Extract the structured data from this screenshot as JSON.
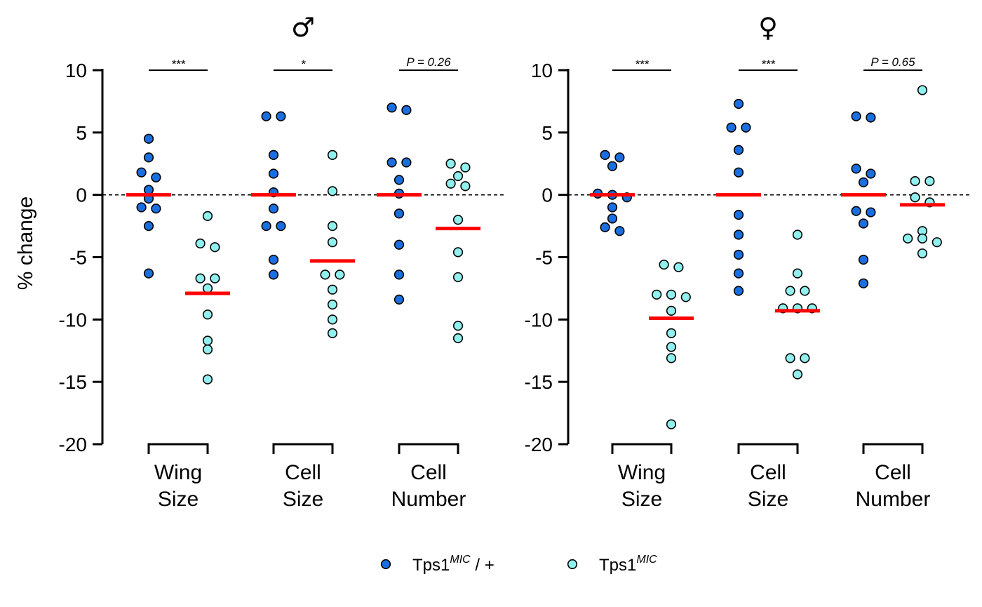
{
  "chart_data": {
    "type": "scatter",
    "subtype": "dot-plot-with-mean",
    "ylabel": "% change",
    "ylim": [
      -20,
      10
    ],
    "yticks": [
      10,
      5,
      0,
      -5,
      -10,
      -15,
      -20
    ],
    "ytick_labels": [
      "10",
      "5",
      "0",
      "-5",
      "-10",
      "-15",
      "-20"
    ],
    "reference_line": 0,
    "legend_position": "bottom-center",
    "colors": {
      "control": "#1a6fe0",
      "mutant": "#8ff0ee",
      "mean_bar": "#ff0000",
      "marker_edge": "#000000"
    },
    "legend": [
      {
        "key": "control",
        "base": "Tps1",
        "sup": "MIC",
        "suffix": " / +"
      },
      {
        "key": "mutant",
        "base": "Tps1",
        "sup": "MIC",
        "suffix": ""
      }
    ],
    "panels": [
      {
        "title": "♂",
        "groups": [
          {
            "label_lines": [
              "Wing",
              "Size"
            ],
            "significance": "***",
            "control": {
              "mean": 0,
              "values": [
                4.5,
                3.0,
                1.8,
                1.4,
                0.4,
                -0.3,
                -1.0,
                -1.1,
                -2.5,
                -6.3
              ]
            },
            "mutant": {
              "mean": -7.9,
              "values": [
                -1.7,
                -3.9,
                -4.2,
                -6.7,
                -6.7,
                -7.5,
                -9.6,
                -11.7,
                -12.4,
                -14.8
              ]
            }
          },
          {
            "label_lines": [
              "Cell",
              "Size"
            ],
            "significance": "*",
            "control": {
              "mean": 0,
              "values": [
                6.3,
                6.3,
                3.2,
                1.7,
                0.2,
                -1.1,
                -2.5,
                -2.5,
                -5.2,
                -6.4
              ]
            },
            "mutant": {
              "mean": -5.3,
              "values": [
                3.2,
                0.3,
                -2.5,
                -3.8,
                -6.4,
                -6.4,
                -7.6,
                -8.8,
                -10.0,
                -11.1
              ]
            }
          },
          {
            "label_lines": [
              "Cell",
              "Number"
            ],
            "significance": "P = 0.26",
            "control": {
              "mean": 0,
              "values": [
                7.0,
                6.8,
                2.6,
                2.6,
                1.2,
                0.1,
                -1.5,
                -4.0,
                -6.4,
                -8.4
              ]
            },
            "mutant": {
              "mean": -2.7,
              "values": [
                2.5,
                2.2,
                1.5,
                0.9,
                0.7,
                -2.0,
                -4.6,
                -6.6,
                -10.5,
                -11.5
              ]
            }
          }
        ]
      },
      {
        "title": "♀",
        "groups": [
          {
            "label_lines": [
              "Wing",
              "Size"
            ],
            "significance": "***",
            "control": {
              "mean": 0,
              "values": [
                3.2,
                3.0,
                2.3,
                0.1,
                -0.2,
                -1.0,
                -1.9,
                -2.6,
                -2.9,
                0.0
              ]
            },
            "mutant": {
              "mean": -9.9,
              "values": [
                -5.6,
                -5.8,
                -8.0,
                -8.0,
                -8.2,
                -9.3,
                -11.1,
                -12.2,
                -13.1,
                -18.4
              ]
            }
          },
          {
            "label_lines": [
              "Cell",
              "Size"
            ],
            "significance": "***",
            "control": {
              "mean": 0,
              "values": [
                7.3,
                5.4,
                5.4,
                3.6,
                1.8,
                -1.6,
                -3.2,
                -4.8,
                -6.3,
                -7.7
              ]
            },
            "mutant": {
              "mean": -9.3,
              "values": [
                -3.2,
                -6.3,
                -7.7,
                -7.7,
                -9.1,
                -9.1,
                -9.1,
                -13.1,
                -13.1,
                -14.4
              ]
            }
          },
          {
            "label_lines": [
              "Cell",
              "Number"
            ],
            "significance": "P = 0.65",
            "control": {
              "mean": 0,
              "values": [
                6.3,
                6.2,
                2.1,
                1.7,
                1.0,
                -1.3,
                -1.4,
                -2.3,
                -5.2,
                -7.1
              ]
            },
            "mutant": {
              "mean": -0.8,
              "values": [
                8.4,
                1.1,
                1.1,
                -0.2,
                -0.6,
                -2.9,
                -3.5,
                -3.5,
                -3.8,
                -4.7
              ]
            }
          }
        ]
      }
    ]
  }
}
